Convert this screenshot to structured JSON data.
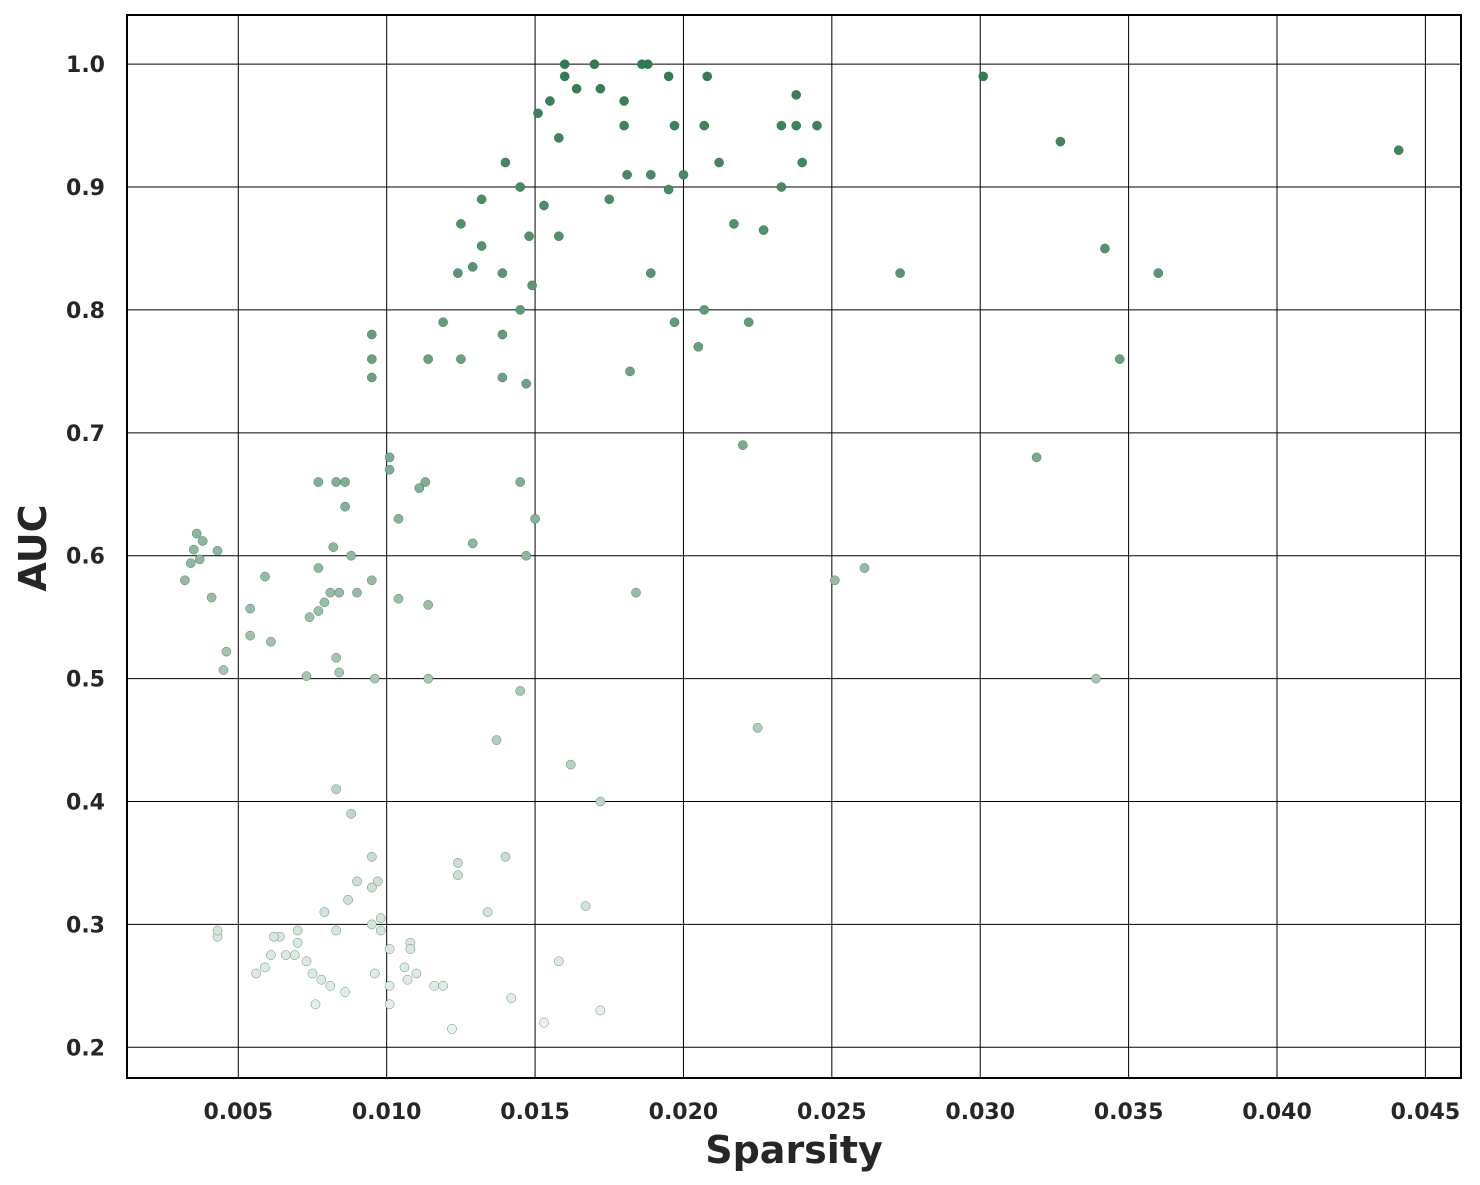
{
  "chart_data": {
    "type": "scatter",
    "xlabel": "Sparsity",
    "ylabel": "AUC",
    "xlim": [
      0.00125,
      0.0462
    ],
    "ylim": [
      0.175,
      1.04
    ],
    "x_ticks": [
      0.005,
      0.01,
      0.015,
      0.02,
      0.025,
      0.03,
      0.035,
      0.04,
      0.045
    ],
    "x_tick_labels": [
      "0.005",
      "0.010",
      "0.015",
      "0.020",
      "0.025",
      "0.030",
      "0.035",
      "0.040",
      "0.045"
    ],
    "y_ticks": [
      0.2,
      0.3,
      0.4,
      0.5,
      0.6,
      0.7,
      0.8,
      0.9,
      1.0
    ],
    "y_tick_labels": [
      "0.2",
      "0.3",
      "0.4",
      "0.5",
      "0.6",
      "0.7",
      "0.8",
      "0.9",
      "1.0"
    ],
    "grid": true,
    "legend": "none",
    "color_mapping": "points colored by AUC: light green (low AUC) to dark green (high AUC)",
    "colors": {
      "low": "#e8f4ec",
      "high": "#2e7d4f"
    },
    "points": [
      [
        0.0441,
        0.93
      ],
      [
        0.0327,
        0.937
      ],
      [
        0.0301,
        0.99
      ],
      [
        0.0342,
        0.85
      ],
      [
        0.036,
        0.83
      ],
      [
        0.0347,
        0.76
      ],
      [
        0.0319,
        0.68
      ],
      [
        0.0339,
        0.5
      ],
      [
        0.0273,
        0.83
      ],
      [
        0.0261,
        0.59
      ],
      [
        0.0251,
        0.58
      ],
      [
        0.0245,
        0.95
      ],
      [
        0.0238,
        0.975
      ],
      [
        0.0238,
        0.95
      ],
      [
        0.024,
        0.92
      ],
      [
        0.0233,
        0.95
      ],
      [
        0.0233,
        0.9
      ],
      [
        0.0227,
        0.865
      ],
      [
        0.0225,
        0.46
      ],
      [
        0.0222,
        0.79
      ],
      [
        0.022,
        0.69
      ],
      [
        0.0217,
        0.87
      ],
      [
        0.0212,
        0.92
      ],
      [
        0.0208,
        0.99
      ],
      [
        0.0207,
        0.95
      ],
      [
        0.0207,
        0.8
      ],
      [
        0.0205,
        0.77
      ],
      [
        0.02,
        0.91
      ],
      [
        0.0197,
        0.95
      ],
      [
        0.0197,
        0.79
      ],
      [
        0.0195,
        0.99
      ],
      [
        0.0195,
        0.898
      ],
      [
        0.0189,
        0.91
      ],
      [
        0.0189,
        0.83
      ],
      [
        0.0188,
        1.0
      ],
      [
        0.0186,
        1.0
      ],
      [
        0.0184,
        0.57
      ],
      [
        0.0182,
        0.75
      ],
      [
        0.0181,
        0.91
      ],
      [
        0.018,
        0.97
      ],
      [
        0.018,
        0.95
      ],
      [
        0.0175,
        0.89
      ],
      [
        0.0172,
        0.98
      ],
      [
        0.0172,
        0.4
      ],
      [
        0.0172,
        0.23
      ],
      [
        0.017,
        1.0
      ],
      [
        0.0167,
        0.315
      ],
      [
        0.0164,
        0.98
      ],
      [
        0.0162,
        0.43
      ],
      [
        0.016,
        1.0
      ],
      [
        0.016,
        0.99
      ],
      [
        0.0158,
        0.94
      ],
      [
        0.0158,
        0.86
      ],
      [
        0.0158,
        0.27
      ],
      [
        0.0155,
        0.97
      ],
      [
        0.0153,
        0.885
      ],
      [
        0.0153,
        0.22
      ],
      [
        0.0151,
        0.96
      ],
      [
        0.015,
        0.63
      ],
      [
        0.0148,
        0.86
      ],
      [
        0.0149,
        0.82
      ],
      [
        0.0147,
        0.74
      ],
      [
        0.0147,
        0.6
      ],
      [
        0.0145,
        0.9
      ],
      [
        0.0145,
        0.8
      ],
      [
        0.0145,
        0.66
      ],
      [
        0.0145,
        0.49
      ],
      [
        0.0142,
        0.24
      ],
      [
        0.014,
        0.92
      ],
      [
        0.014,
        0.355
      ],
      [
        0.0139,
        0.83
      ],
      [
        0.0139,
        0.78
      ],
      [
        0.0139,
        0.745
      ],
      [
        0.0137,
        0.45
      ],
      [
        0.0134,
        0.31
      ],
      [
        0.0132,
        0.89
      ],
      [
        0.0132,
        0.852
      ],
      [
        0.0129,
        0.835
      ],
      [
        0.0129,
        0.61
      ],
      [
        0.0125,
        0.87
      ],
      [
        0.0125,
        0.76
      ],
      [
        0.0124,
        0.83
      ],
      [
        0.0124,
        0.35
      ],
      [
        0.0124,
        0.34
      ],
      [
        0.0122,
        0.215
      ],
      [
        0.0119,
        0.79
      ],
      [
        0.0119,
        0.25
      ],
      [
        0.0116,
        0.25
      ],
      [
        0.0114,
        0.76
      ],
      [
        0.0114,
        0.56
      ],
      [
        0.0114,
        0.5
      ],
      [
        0.0113,
        0.66
      ],
      [
        0.0111,
        0.655
      ],
      [
        0.011,
        0.26
      ],
      [
        0.0108,
        0.285
      ],
      [
        0.0108,
        0.28
      ],
      [
        0.0107,
        0.255
      ],
      [
        0.0106,
        0.265
      ],
      [
        0.0104,
        0.63
      ],
      [
        0.0104,
        0.565
      ],
      [
        0.0101,
        0.68
      ],
      [
        0.0101,
        0.67
      ],
      [
        0.0101,
        0.28
      ],
      [
        0.0101,
        0.25
      ],
      [
        0.0101,
        0.235
      ],
      [
        0.0098,
        0.305
      ],
      [
        0.0098,
        0.295
      ],
      [
        0.0097,
        0.335
      ],
      [
        0.0096,
        0.5
      ],
      [
        0.0096,
        0.26
      ],
      [
        0.0095,
        0.78
      ],
      [
        0.0095,
        0.76
      ],
      [
        0.0095,
        0.745
      ],
      [
        0.0095,
        0.58
      ],
      [
        0.0095,
        0.33
      ],
      [
        0.0095,
        0.355
      ],
      [
        0.0095,
        0.3
      ],
      [
        0.009,
        0.57
      ],
      [
        0.009,
        0.335
      ],
      [
        0.0088,
        0.6
      ],
      [
        0.0088,
        0.39
      ],
      [
        0.0087,
        0.32
      ],
      [
        0.0086,
        0.66
      ],
      [
        0.0086,
        0.64
      ],
      [
        0.0086,
        0.245
      ],
      [
        0.0084,
        0.57
      ],
      [
        0.0084,
        0.505
      ],
      [
        0.0083,
        0.66
      ],
      [
        0.0083,
        0.517
      ],
      [
        0.0083,
        0.41
      ],
      [
        0.0083,
        0.295
      ],
      [
        0.0082,
        0.607
      ],
      [
        0.0081,
        0.57
      ],
      [
        0.0081,
        0.25
      ],
      [
        0.0079,
        0.562
      ],
      [
        0.0079,
        0.31
      ],
      [
        0.0078,
        0.255
      ],
      [
        0.0077,
        0.66
      ],
      [
        0.0077,
        0.59
      ],
      [
        0.0077,
        0.555
      ],
      [
        0.0076,
        0.235
      ],
      [
        0.0074,
        0.55
      ],
      [
        0.0073,
        0.502
      ],
      [
        0.0073,
        0.27
      ],
      [
        0.0075,
        0.26
      ],
      [
        0.0061,
        0.53
      ],
      [
        0.0061,
        0.275
      ],
      [
        0.0059,
        0.583
      ],
      [
        0.0059,
        0.265
      ],
      [
        0.0056,
        0.26
      ],
      [
        0.0054,
        0.557
      ],
      [
        0.0054,
        0.535
      ],
      [
        0.0045,
        0.507
      ],
      [
        0.0046,
        0.522
      ],
      [
        0.0041,
        0.566
      ],
      [
        0.0043,
        0.604
      ],
      [
        0.0043,
        0.29
      ],
      [
        0.0043,
        0.295
      ],
      [
        0.0035,
        0.605
      ],
      [
        0.0034,
        0.594
      ],
      [
        0.0032,
        0.58
      ],
      [
        0.0037,
        0.597
      ],
      [
        0.0038,
        0.612
      ],
      [
        0.0036,
        0.618
      ],
      [
        0.0069,
        0.275
      ],
      [
        0.0066,
        0.275
      ],
      [
        0.0064,
        0.29
      ],
      [
        0.0062,
        0.29
      ],
      [
        0.007,
        0.295
      ],
      [
        0.007,
        0.285
      ]
    ]
  }
}
